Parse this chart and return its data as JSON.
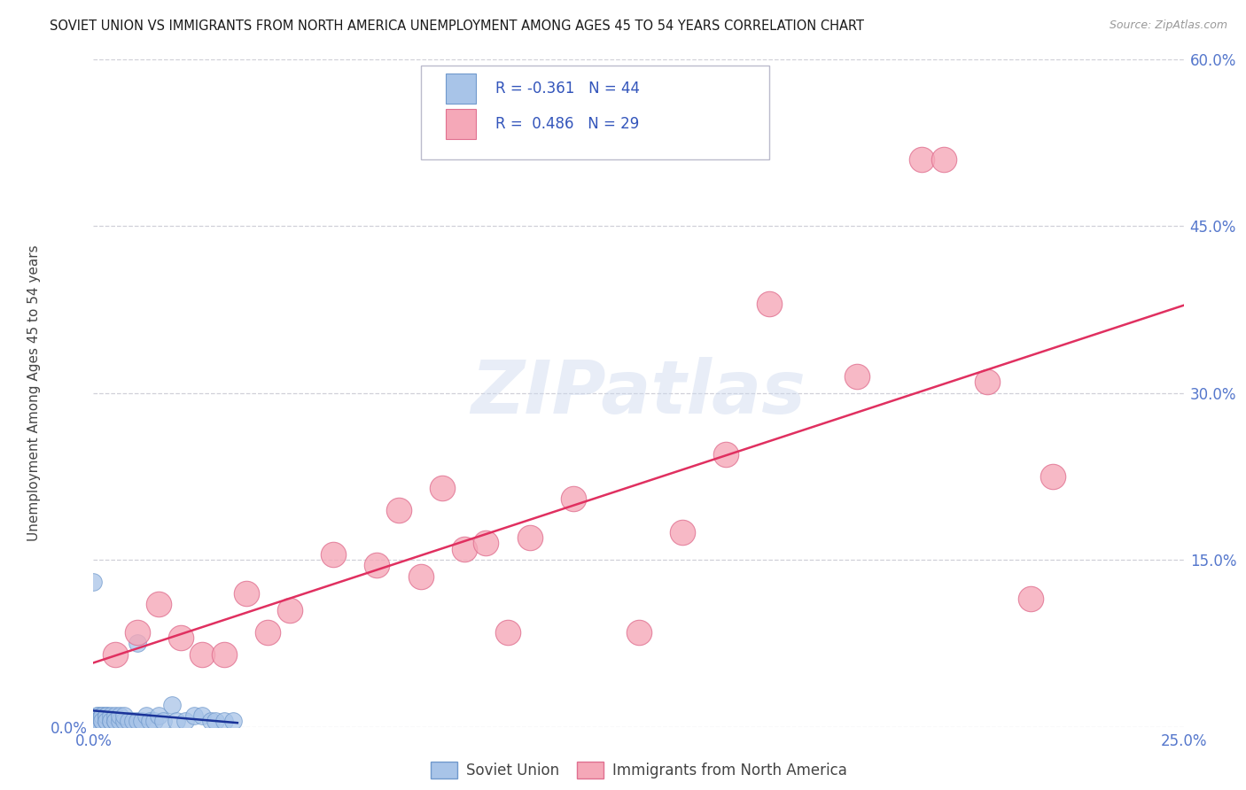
{
  "title": "SOVIET UNION VS IMMIGRANTS FROM NORTH AMERICA UNEMPLOYMENT AMONG AGES 45 TO 54 YEARS CORRELATION CHART",
  "source": "Source: ZipAtlas.com",
  "ylabel": "Unemployment Among Ages 45 to 54 years",
  "xlim": [
    0.0,
    0.25
  ],
  "ylim": [
    0.0,
    0.6
  ],
  "xticks": [
    0.0,
    0.05,
    0.1,
    0.15,
    0.2,
    0.25
  ],
  "yticks": [
    0.0,
    0.15,
    0.3,
    0.45,
    0.6
  ],
  "xticklabels": [
    "0.0%",
    "",
    "",
    "",
    "",
    "25.0%"
  ],
  "background_color": "#ffffff",
  "grid_color": "#d0d0d8",
  "soviet_color": "#a8c4e8",
  "soviet_edge_color": "#7099cc",
  "north_america_color": "#f5a8b8",
  "north_america_edge_color": "#e07090",
  "soviet_R": -0.361,
  "soviet_N": 44,
  "north_america_R": 0.486,
  "north_america_N": 29,
  "soviet_line_color": "#1a3399",
  "north_america_line_color": "#e03060",
  "legend_label_soviet": "Soviet Union",
  "legend_label_north_america": "Immigrants from North America",
  "tick_color": "#5577cc",
  "soviet_x": [
    0.001,
    0.001,
    0.001,
    0.001,
    0.001,
    0.002,
    0.002,
    0.002,
    0.002,
    0.002,
    0.003,
    0.003,
    0.003,
    0.003,
    0.004,
    0.004,
    0.004,
    0.005,
    0.005,
    0.005,
    0.006,
    0.006,
    0.007,
    0.007,
    0.008,
    0.009,
    0.01,
    0.011,
    0.012,
    0.013,
    0.014,
    0.015,
    0.016,
    0.018,
    0.019,
    0.021,
    0.023,
    0.025,
    0.027,
    0.028,
    0.03,
    0.032,
    0.0,
    0.01
  ],
  "soviet_y": [
    0.01,
    0.01,
    0.005,
    0.005,
    0.005,
    0.005,
    0.005,
    0.01,
    0.01,
    0.005,
    0.005,
    0.01,
    0.01,
    0.005,
    0.005,
    0.01,
    0.005,
    0.005,
    0.01,
    0.005,
    0.005,
    0.01,
    0.005,
    0.01,
    0.005,
    0.005,
    0.005,
    0.005,
    0.01,
    0.005,
    0.005,
    0.01,
    0.005,
    0.02,
    0.005,
    0.005,
    0.01,
    0.01,
    0.005,
    0.005,
    0.005,
    0.005,
    0.13,
    0.075
  ],
  "north_america_x": [
    0.005,
    0.01,
    0.015,
    0.02,
    0.025,
    0.03,
    0.035,
    0.04,
    0.045,
    0.055,
    0.065,
    0.07,
    0.075,
    0.08,
    0.085,
    0.09,
    0.095,
    0.1,
    0.11,
    0.125,
    0.135,
    0.145,
    0.155,
    0.175,
    0.19,
    0.195,
    0.205,
    0.215,
    0.22
  ],
  "north_america_y": [
    0.065,
    0.085,
    0.11,
    0.08,
    0.065,
    0.065,
    0.12,
    0.085,
    0.105,
    0.155,
    0.145,
    0.195,
    0.135,
    0.215,
    0.16,
    0.165,
    0.085,
    0.17,
    0.205,
    0.085,
    0.175,
    0.245,
    0.38,
    0.315,
    0.51,
    0.51,
    0.31,
    0.115,
    0.225
  ]
}
